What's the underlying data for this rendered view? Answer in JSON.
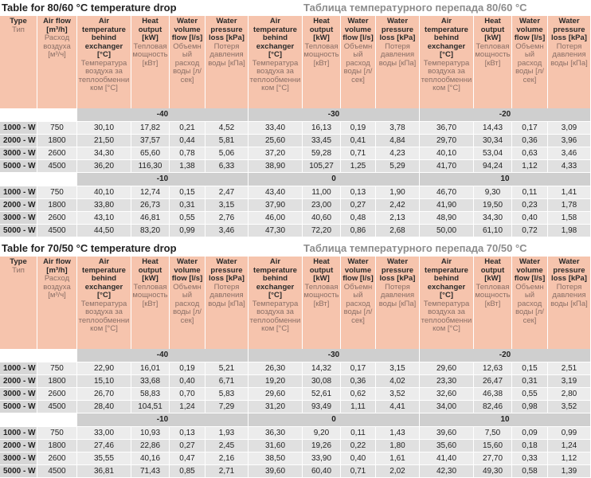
{
  "tables": [
    {
      "title": "Table for 80/60 °C temperature drop",
      "title_ru": "Таблица температурного перепада 80/60 °C",
      "columns": [
        {
          "en": "Type",
          "ru": "Тип"
        },
        {
          "en": "Air flow [m³/h]",
          "ru": "Расход воздуха [м³/ч]"
        },
        {
          "en": "Air temperature behind exchanger [°C]",
          "ru": "Температура воздуха за теплообменником [°C]"
        },
        {
          "en": "Heat output [kW]",
          "ru": "Тепловая мощность [кВт]"
        },
        {
          "en": "Water volume flow [l/s]",
          "ru": "Объемный расход воды [л/сек]"
        },
        {
          "en": "Water pressure loss [kPa]",
          "ru": "Потеря давления воды [кПа]"
        },
        {
          "en": "Air temperature behind exchanger [°C]",
          "ru": "Температура воздуха за теплообменником [°C]"
        },
        {
          "en": "Heat output [kW]",
          "ru": "Тепловая мощность [кВт]"
        },
        {
          "en": "Water volume flow [l/s]",
          "ru": "Объемный расход воды [л/сек]"
        },
        {
          "en": "Water pressure loss [kPa]",
          "ru": "Потеря давления воды [кПа]"
        },
        {
          "en": "Air temperature behind exchanger [°C]",
          "ru": "Температура воздуха за теплообменником [°C]"
        },
        {
          "en": "Heat output [kW]",
          "ru": "Тепловая мощность [кВт]"
        },
        {
          "en": "Water volume flow [l/s]",
          "ru": "Объемный расход воды [л/сек]"
        },
        {
          "en": "Water pressure loss [kPa]",
          "ru": "Потеря давления воды [кПа]"
        }
      ],
      "blocks": [
        {
          "temps": [
            "-40",
            "-30",
            "-20"
          ],
          "rows": [
            [
              "1000 - W",
              "750",
              "30,10",
              "17,82",
              "0,21",
              "4,52",
              "33,40",
              "16,13",
              "0,19",
              "3,78",
              "36,70",
              "14,43",
              "0,17",
              "3,09"
            ],
            [
              "2000 - W",
              "1800",
              "21,50",
              "37,57",
              "0,44",
              "5,81",
              "25,60",
              "33,45",
              "0,41",
              "4,84",
              "29,70",
              "30,34",
              "0,36",
              "3,96"
            ],
            [
              "3000 - W",
              "2600",
              "34,30",
              "65,60",
              "0,78",
              "5,06",
              "37,20",
              "59,28",
              "0,71",
              "4,23",
              "40,10",
              "53,04",
              "0,63",
              "3,46"
            ],
            [
              "5000 - W",
              "4500",
              "36,20",
              "116,30",
              "1,38",
              "6,33",
              "38,90",
              "105,27",
              "1,25",
              "5,29",
              "41,70",
              "94,24",
              "1,12",
              "4,33"
            ]
          ]
        },
        {
          "temps": [
            "-10",
            "0",
            "10"
          ],
          "rows": [
            [
              "1000 - W",
              "750",
              "40,10",
              "12,74",
              "0,15",
              "2,47",
              "43,40",
              "11,00",
              "0,13",
              "1,90",
              "46,70",
              "9,30",
              "0,11",
              "1,41"
            ],
            [
              "2000 - W",
              "1800",
              "33,80",
              "26,73",
              "0,31",
              "3,15",
              "37,90",
              "23,00",
              "0,27",
              "2,42",
              "41,90",
              "19,50",
              "0,23",
              "1,78"
            ],
            [
              "3000 - W",
              "2600",
              "43,10",
              "46,81",
              "0,55",
              "2,76",
              "46,00",
              "40,60",
              "0,48",
              "2,13",
              "48,90",
              "34,30",
              "0,40",
              "1,58"
            ],
            [
              "5000 - W",
              "4500",
              "44,50",
              "83,20",
              "0,99",
              "3,46",
              "47,30",
              "72,20",
              "0,86",
              "2,68",
              "50,00",
              "61,10",
              "0,72",
              "1,98"
            ]
          ]
        }
      ]
    },
    {
      "title": "Table for 70/50 °C temperature drop",
      "title_ru": "Таблица температурного перепада 70/50 °C",
      "columns": [
        {
          "en": "Type",
          "ru": "Тип"
        },
        {
          "en": "Air flow [m³/h]",
          "ru": "Расход воздуха [м³/ч]"
        },
        {
          "en": "Air temperature behind exchanger [°C]",
          "ru": "Температура воздуха за теплообменником [°C]"
        },
        {
          "en": "Heat output [kW]",
          "ru": "Тепловая мощность [кВт]"
        },
        {
          "en": "Water volume flow [l/s]",
          "ru": "Объемный расход воды [л/сек]"
        },
        {
          "en": "Water pressure loss [kPa]",
          "ru": "Потеря давления воды [кПа]"
        },
        {
          "en": "Air temperature behind exchanger [°C]",
          "ru": "Температура воздуха за теплообменником [°C]"
        },
        {
          "en": "Heat output [kW]",
          "ru": "Тепловая мощность [кВт]"
        },
        {
          "en": "Water volume flow [l/s]",
          "ru": "Объемный расход воды [л/сек]"
        },
        {
          "en": "Water pressure loss [kPa]",
          "ru": "Потеря давления воды [кПа]"
        },
        {
          "en": "Air temperature behind exchanger [°C]",
          "ru": "Температура воздуха за теплообменником [°C]"
        },
        {
          "en": "Heat output [kW]",
          "ru": "Тепловая мощность [кВт]"
        },
        {
          "en": "Water volume flow [l/s]",
          "ru": "Объемный расход воды [л/сек]"
        },
        {
          "en": "Water pressure loss [kPa]",
          "ru": "Потеря давления воды [кПа]"
        }
      ],
      "blocks": [
        {
          "temps": [
            "-40",
            "-30",
            "-20"
          ],
          "rows": [
            [
              "1000 - W",
              "750",
              "22,90",
              "16,01",
              "0,19",
              "5,21",
              "26,30",
              "14,32",
              "0,17",
              "3,15",
              "29,60",
              "12,63",
              "0,15",
              "2,51"
            ],
            [
              "2000 - W",
              "1800",
              "15,10",
              "33,68",
              "0,40",
              "6,71",
              "19,20",
              "30,08",
              "0,36",
              "4,02",
              "23,30",
              "26,47",
              "0,31",
              "3,19"
            ],
            [
              "3000 - W",
              "2600",
              "26,70",
              "58,83",
              "0,70",
              "5,83",
              "29,60",
              "52,61",
              "0,62",
              "3,52",
              "32,60",
              "46,38",
              "0,55",
              "2,80"
            ],
            [
              "5000 - W",
              "4500",
              "28,40",
              "104,51",
              "1,24",
              "7,29",
              "31,20",
              "93,49",
              "1,11",
              "4,41",
              "34,00",
              "82,46",
              "0,98",
              "3,52"
            ]
          ]
        },
        {
          "temps": [
            "-10",
            "0",
            "10"
          ],
          "rows": [
            [
              "1000 - W",
              "750",
              "33,00",
              "10,93",
              "0,13",
              "1,93",
              "36,30",
              "9,20",
              "0,11",
              "1,43",
              "39,60",
              "7,50",
              "0,09",
              "0,99"
            ],
            [
              "2000 - W",
              "1800",
              "27,46",
              "22,86",
              "0,27",
              "2,45",
              "31,60",
              "19,26",
              "0,22",
              "1,80",
              "35,60",
              "15,60",
              "0,18",
              "1,24"
            ],
            [
              "3000 - W",
              "2600",
              "35,55",
              "40,16",
              "0,47",
              "2,16",
              "38,50",
              "33,90",
              "0,40",
              "1,61",
              "41,40",
              "27,70",
              "0,33",
              "1,12"
            ],
            [
              "5000 - W",
              "4500",
              "36,81",
              "71,43",
              "0,85",
              "2,71",
              "39,60",
              "60,40",
              "0,71",
              "2,02",
              "42,30",
              "49,30",
              "0,58",
              "1,39"
            ]
          ]
        }
      ]
    }
  ]
}
